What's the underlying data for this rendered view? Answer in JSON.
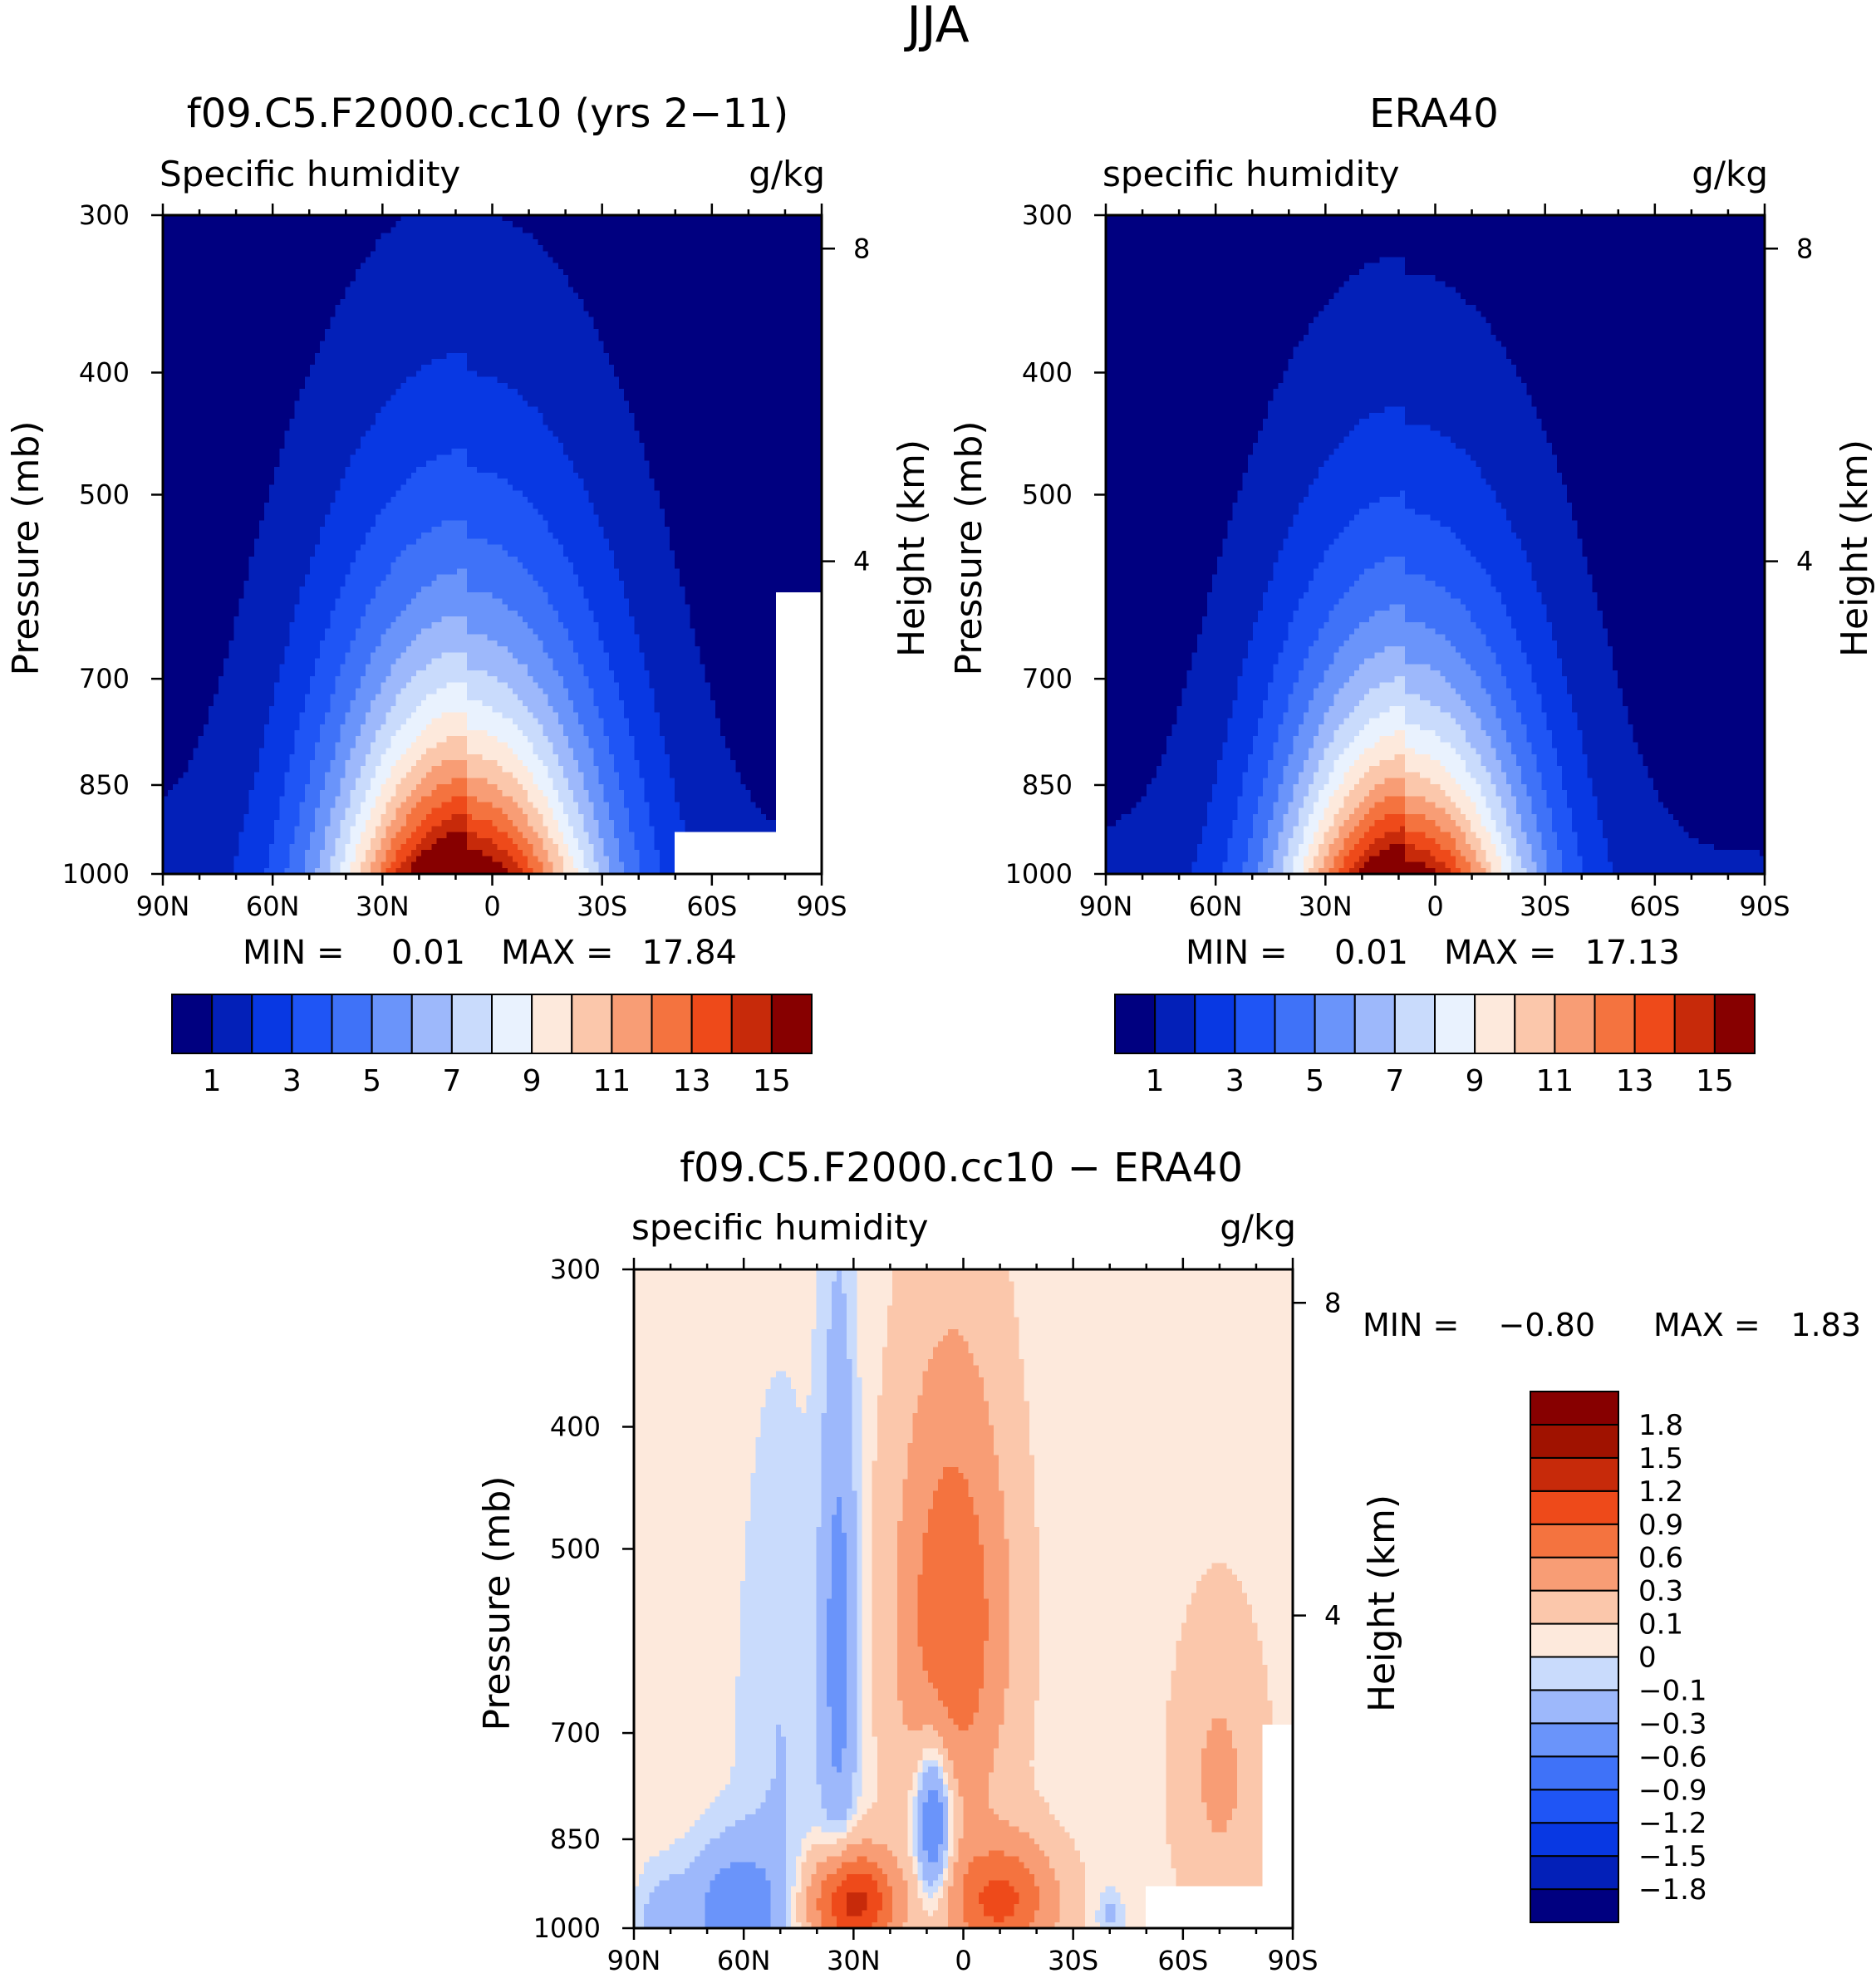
{
  "figure": {
    "title": "JJA"
  },
  "chart_data": [
    {
      "type": "heatmap",
      "id": "model",
      "title": "f09.C5.F2000.cc10 (yrs 2−11)",
      "subtitle_left": "Specific humidity",
      "subtitle_right": "g/kg",
      "xlabel": "",
      "ylabel": "Pressure (mb)",
      "ylabel_right": "Height (km)",
      "x_ticks": [
        "90N",
        "60N",
        "30N",
        "0",
        "30S",
        "60S",
        "90S"
      ],
      "x_range": [
        90,
        -90
      ],
      "y_ticks": [
        300,
        400,
        500,
        700,
        850,
        1000
      ],
      "y_range": [
        300,
        1000
      ],
      "y_right_ticks": [
        8,
        4
      ],
      "min_label": "MIN =",
      "min_value": "0.01",
      "max_label": "MAX =",
      "max_value": "17.84",
      "field": {
        "center_lat": 7,
        "surface_peak": 17.84,
        "peak_lat_width": 26,
        "scale_height_frac": 0.36,
        "missing": [
          {
            "lat_from": -50,
            "lat_to": -90,
            "p_from": 925
          },
          {
            "lat_from": -78,
            "lat_to": -90,
            "p_from": 600
          }
        ]
      },
      "colorbar": {
        "levels": [
          1,
          2,
          3,
          4,
          5,
          6,
          7,
          8,
          9,
          10,
          11,
          12,
          13,
          14,
          15
        ],
        "labels": [
          "1",
          "3",
          "5",
          "7",
          "9",
          "11",
          "13",
          "15"
        ],
        "colors": [
          "#000080",
          "#0320b8",
          "#0838e3",
          "#1f55f5",
          "#3f72f8",
          "#6a94fa",
          "#9db8fb",
          "#c9dbfc",
          "#e9f2fe",
          "#fde9dc",
          "#fbc7ab",
          "#f89d75",
          "#f4733f",
          "#ee4a1a",
          "#c72a0a",
          "#870000"
        ]
      }
    },
    {
      "type": "heatmap",
      "id": "obs",
      "title": "ERA40",
      "subtitle_left": "specific humidity",
      "subtitle_right": "g/kg",
      "xlabel": "",
      "ylabel": "Pressure (mb)",
      "ylabel_right": "Height (km)",
      "x_ticks": [
        "90N",
        "60N",
        "30N",
        "0",
        "30S",
        "60S",
        "90S"
      ],
      "x_range": [
        90,
        -90
      ],
      "y_ticks": [
        300,
        400,
        500,
        700,
        850,
        1000
      ],
      "y_range": [
        300,
        1000
      ],
      "y_right_ticks": [
        8,
        4
      ],
      "min_label": "MIN =",
      "min_value": "0.01",
      "max_label": "MAX =",
      "max_value": "17.13",
      "field": {
        "center_lat": 8,
        "surface_peak": 17.13,
        "peak_lat_width": 24,
        "scale_height_frac": 0.33,
        "missing": []
      },
      "colorbar": {
        "levels": [
          1,
          2,
          3,
          4,
          5,
          6,
          7,
          8,
          9,
          10,
          11,
          12,
          13,
          14,
          15
        ],
        "labels": [
          "1",
          "3",
          "5",
          "7",
          "9",
          "11",
          "13",
          "15"
        ],
        "colors": [
          "#000080",
          "#0320b8",
          "#0838e3",
          "#1f55f5",
          "#3f72f8",
          "#6a94fa",
          "#9db8fb",
          "#c9dbfc",
          "#e9f2fe",
          "#fde9dc",
          "#fbc7ab",
          "#f89d75",
          "#f4733f",
          "#ee4a1a",
          "#c72a0a",
          "#870000"
        ]
      }
    },
    {
      "type": "heatmap",
      "id": "diff",
      "title": "f09.C5.F2000.cc10 − ERA40",
      "subtitle_left": "specific humidity",
      "subtitle_right": "g/kg",
      "xlabel": "",
      "ylabel": "Pressure (mb)",
      "ylabel_right": "Height (km)",
      "x_ticks": [
        "90N",
        "60N",
        "30N",
        "0",
        "30S",
        "60S",
        "90S"
      ],
      "x_range": [
        90,
        -90
      ],
      "y_ticks": [
        300,
        400,
        500,
        700,
        850,
        1000
      ],
      "y_range": [
        300,
        1000
      ],
      "y_right_ticks": [
        8,
        4
      ],
      "min_label": "MIN =",
      "min_value": "−0.80",
      "max_label": "MAX =",
      "max_value": "1.83",
      "field": {
        "missing": [
          {
            "lat_from": -50,
            "lat_to": -90,
            "p_from": 930
          },
          {
            "lat_from": -82,
            "lat_to": -90,
            "p_from": 690
          }
        ],
        "blobs": [
          {
            "lat": 3,
            "p": 570,
            "val": 0.85,
            "slat": 10,
            "sp": 150
          },
          {
            "lat": -10,
            "p": 950,
            "val": 0.95,
            "slat": 10,
            "sp": 70
          },
          {
            "lat": 30,
            "p": 955,
            "val": 1.3,
            "slat": 8,
            "sp": 60
          },
          {
            "lat": 8,
            "p": 820,
            "val": -0.75,
            "slat": 3.5,
            "sp": 90
          },
          {
            "lat": 34,
            "p": 600,
            "val": -0.45,
            "slat": 3.5,
            "sp": 200
          },
          {
            "lat": 50,
            "p": 700,
            "val": -0.15,
            "slat": 8,
            "sp": 230
          },
          {
            "lat": 62,
            "p": 970,
            "val": -0.55,
            "slat": 9,
            "sp": 80
          },
          {
            "lat": 82,
            "p": 990,
            "val": -0.25,
            "slat": 5,
            "sp": 60
          },
          {
            "lat": -70,
            "p": 760,
            "val": 0.3,
            "slat": 8,
            "sp": 130
          },
          {
            "lat": -40,
            "p": 975,
            "val": -0.2,
            "slat": 2.5,
            "sp": 30
          }
        ]
      },
      "colorbar": {
        "levels": [
          -1.8,
          -1.5,
          -1.2,
          -0.9,
          -0.6,
          -0.3,
          -0.1,
          0,
          0.1,
          0.3,
          0.6,
          0.9,
          1.2,
          1.5,
          1.8
        ],
        "labels": [
          "−1.8",
          "−1.5",
          "−1.2",
          "−0.9",
          "−0.6",
          "−0.3",
          "−0.1",
          "0",
          "0.1",
          "0.3",
          "0.6",
          "0.9",
          "1.2",
          "1.5",
          "1.8"
        ],
        "colors": [
          "#000080",
          "#0320b8",
          "#0838e3",
          "#1f55f5",
          "#3f72f8",
          "#6a94fa",
          "#9db8fb",
          "#c9dbfc",
          "#fde9dc",
          "#fbc7ab",
          "#f89d75",
          "#f4733f",
          "#ee4a1a",
          "#c72a0a",
          "#a01200",
          "#870000"
        ]
      }
    }
  ]
}
